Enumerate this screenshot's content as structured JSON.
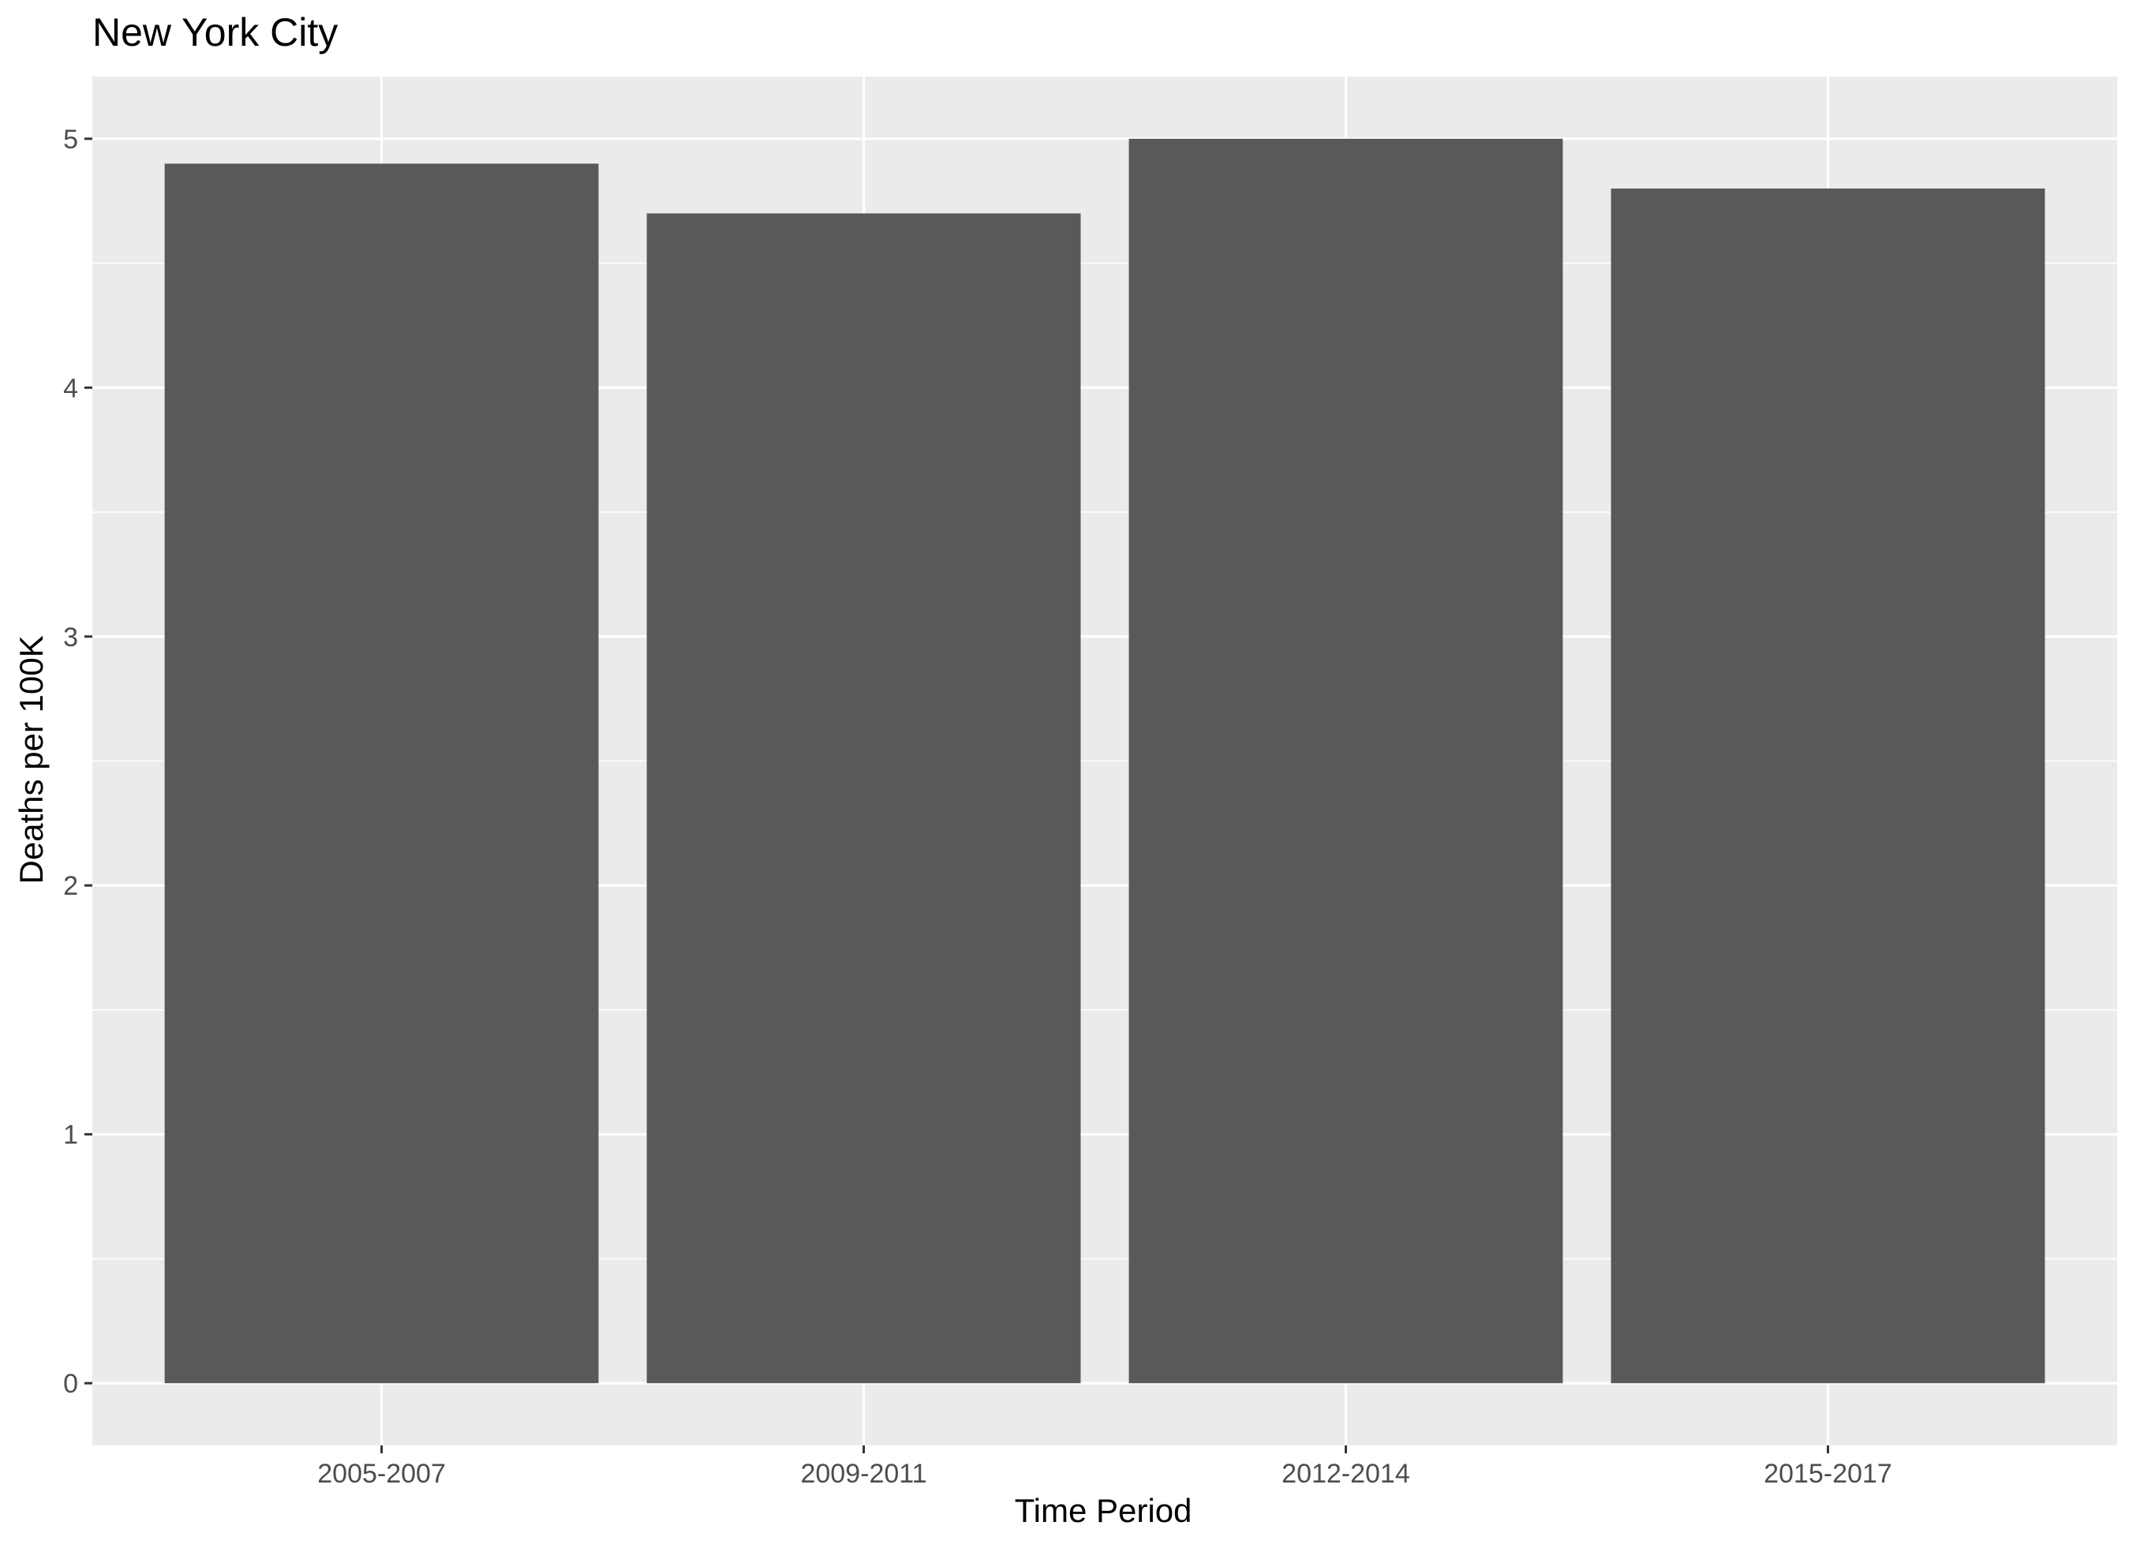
{
  "chart_data": {
    "type": "bar",
    "title": "New York City",
    "xlabel": "Time Period",
    "ylabel": "Deaths per 100K",
    "categories": [
      "2005-2007",
      "2009-2011",
      "2012-2014",
      "2015-2017"
    ],
    "values": [
      4.9,
      4.7,
      5.0,
      4.8
    ],
    "ylim": [
      -0.25,
      5.25
    ],
    "yticks": [
      "0",
      "1",
      "2",
      "3",
      "4",
      "5"
    ],
    "grid": true,
    "legend": "none",
    "colors": {
      "bar": "#595959",
      "panel": "#ebebeb",
      "grid": "#ffffff",
      "tick_text": "#4d4d4d",
      "tick_mark": "#333333"
    }
  }
}
